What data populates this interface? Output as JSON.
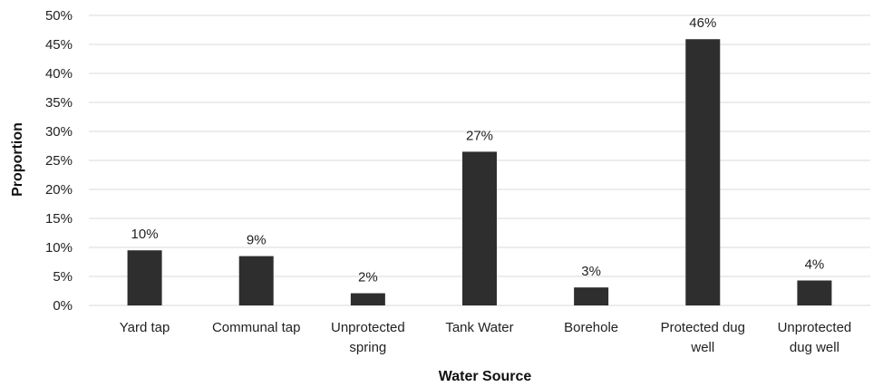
{
  "chart_data": {
    "type": "bar",
    "title": "",
    "xlabel": "Water Source",
    "ylabel": "Proportion",
    "categories": [
      [
        "Yard tap"
      ],
      [
        "Communal tap"
      ],
      [
        "Unprotected",
        "spring"
      ],
      [
        "Tank Water"
      ],
      [
        "Borehole"
      ],
      [
        "Protected dug",
        "well"
      ],
      [
        "Unprotected",
        "dug well"
      ]
    ],
    "values": [
      9.5,
      8.5,
      2.1,
      26.5,
      3.1,
      45.9,
      4.3
    ],
    "data_labels": [
      "10%",
      "9%",
      "2%",
      "27%",
      "3%",
      "46%",
      "4%"
    ],
    "ylim": [
      0,
      50
    ],
    "yticks": [
      "0%",
      "5%",
      "10%",
      "15%",
      "20%",
      "25%",
      "30%",
      "35%",
      "40%",
      "45%",
      "50%"
    ],
    "grid": true,
    "colors": {
      "bar": "#2e2e2e",
      "grid": "#d9d9d9"
    }
  }
}
